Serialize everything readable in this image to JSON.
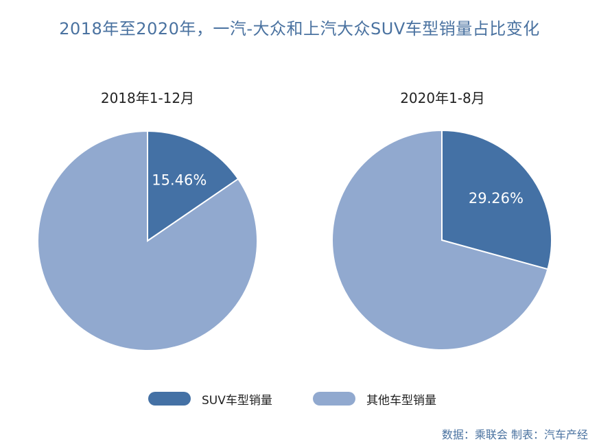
{
  "title": "2018年至2020年，一汽-大众和上汽大众SUV车型销量占比变化",
  "source_note": "数据：乘联会 制表：汽车产经",
  "colors": {
    "suv": "#4471a5",
    "other": "#91a9cf",
    "title": "#4a72a0"
  },
  "chart_data": [
    {
      "type": "pie",
      "title": "2018年1-12月",
      "slices": [
        {
          "name": "SUV车型销量",
          "value": 15.46,
          "label": "15.46%"
        },
        {
          "name": "其他车型销量",
          "value": 84.54,
          "label": ""
        }
      ]
    },
    {
      "type": "pie",
      "title": "2020年1-8月",
      "slices": [
        {
          "name": "SUV车型销量",
          "value": 29.26,
          "label": "29.26%"
        },
        {
          "name": "其他车型销量",
          "value": 70.74,
          "label": ""
        }
      ]
    }
  ],
  "legend": [
    {
      "name": "SUV车型销量",
      "color": "#4471a5"
    },
    {
      "name": "其他车型销量",
      "color": "#91a9cf"
    }
  ]
}
